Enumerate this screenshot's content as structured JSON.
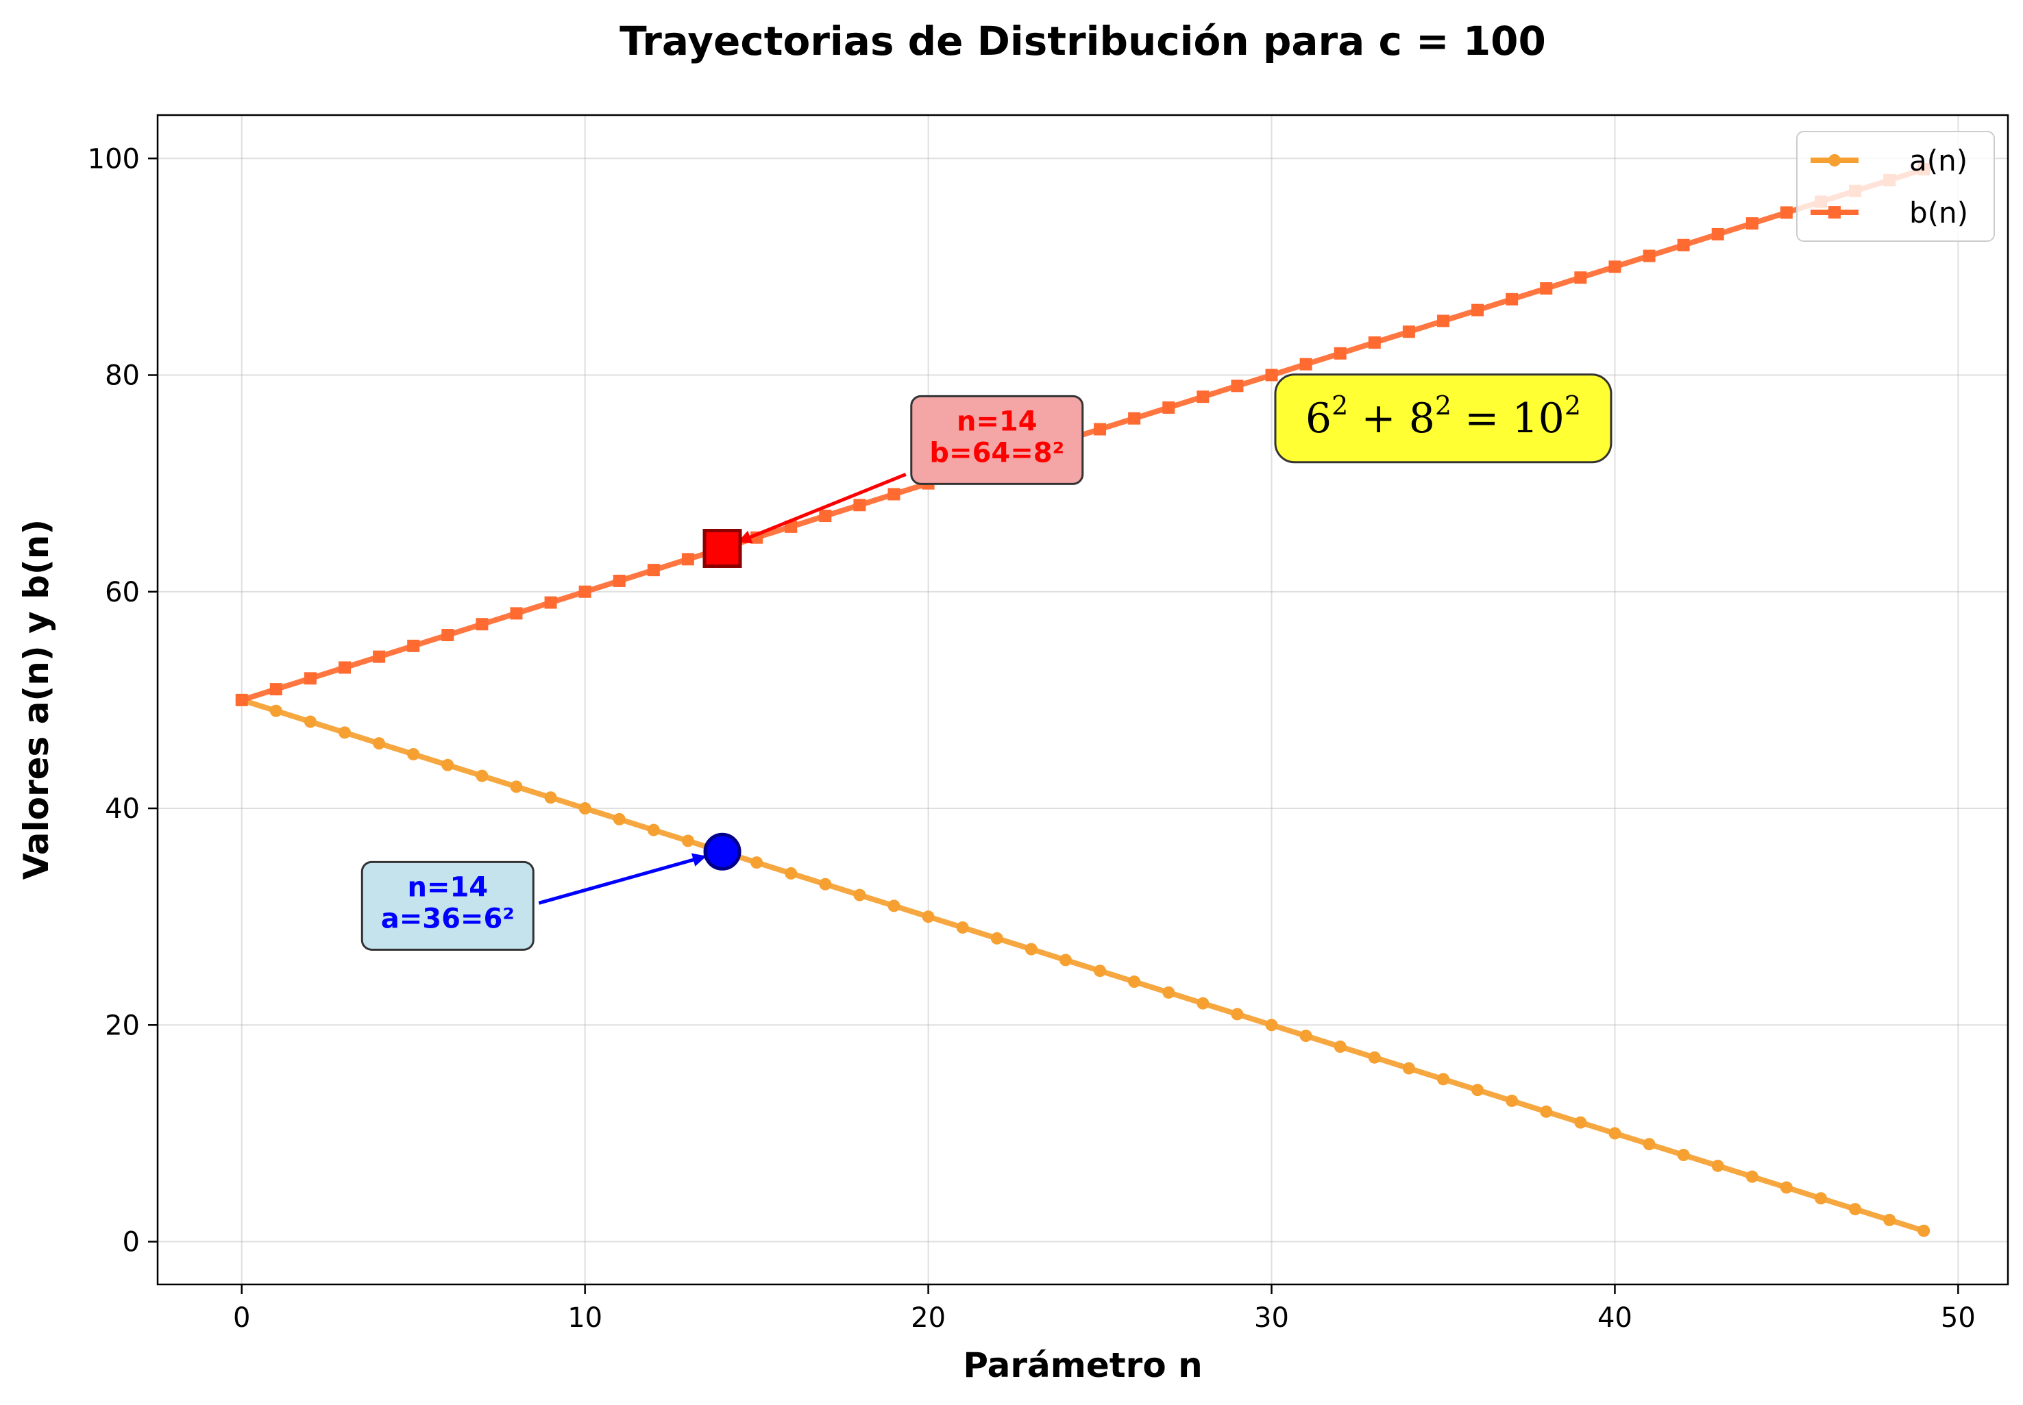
{
  "chart_data": {
    "type": "line",
    "title": "Trayectorias de Distribución para c = 100",
    "xlabel": "Parámetro n",
    "ylabel": "Valores a(n) y b(n)",
    "xlim": [
      -2.45,
      51.45
    ],
    "ylim": [
      -3.95,
      104.0
    ],
    "xticks": [
      0,
      10,
      20,
      30,
      40,
      50
    ],
    "yticks": [
      0,
      20,
      40,
      60,
      80,
      100
    ],
    "grid": true,
    "legend_position": "top-right",
    "x": [
      0,
      1,
      2,
      3,
      4,
      5,
      6,
      7,
      8,
      9,
      10,
      11,
      12,
      13,
      14,
      15,
      16,
      17,
      18,
      19,
      20,
      21,
      22,
      23,
      24,
      25,
      26,
      27,
      28,
      29,
      30,
      31,
      32,
      33,
      34,
      35,
      36,
      37,
      38,
      39,
      40,
      41,
      42,
      43,
      44,
      45,
      46,
      47,
      48,
      49
    ],
    "series": [
      {
        "name": "a(n)",
        "color": "#f5a030",
        "marker": "circle",
        "values": [
          50,
          49,
          48,
          47,
          46,
          45,
          44,
          43,
          42,
          41,
          40,
          39,
          38,
          37,
          36,
          35,
          34,
          33,
          32,
          31,
          30,
          29,
          28,
          27,
          26,
          25,
          24,
          23,
          22,
          21,
          20,
          19,
          18,
          17,
          16,
          15,
          14,
          13,
          12,
          11,
          10,
          9,
          8,
          7,
          6,
          5,
          4,
          3,
          2,
          1
        ]
      },
      {
        "name": "b(n)",
        "color": "#ff6a30",
        "marker": "square",
        "values": [
          50,
          51,
          52,
          53,
          54,
          55,
          56,
          57,
          58,
          59,
          60,
          61,
          62,
          63,
          64,
          65,
          66,
          67,
          68,
          69,
          70,
          71,
          72,
          73,
          74,
          75,
          76,
          77,
          78,
          79,
          80,
          81,
          82,
          83,
          84,
          85,
          86,
          87,
          88,
          89,
          90,
          91,
          92,
          93,
          94,
          95,
          96,
          97,
          98,
          99
        ]
      }
    ],
    "highlights": [
      {
        "series": "b(n)",
        "x": 14,
        "y": 64,
        "marker": "square",
        "fill": "#ff0000",
        "stroke": "#8b0000",
        "label_lines": [
          "n=14",
          "b=64=8²"
        ],
        "label_color": "#ff0000",
        "box_fill": "#f4a6a6",
        "text_anchor": [
          22,
          74
        ]
      },
      {
        "series": "a(n)",
        "x": 14,
        "y": 36,
        "marker": "circle",
        "fill": "#0000ff",
        "stroke": "#00008b",
        "label_lines": [
          "n=14",
          "a=36=6²"
        ],
        "label_color": "#0000ff",
        "box_fill": "#c5e3ec",
        "text_anchor": [
          6,
          31
        ]
      }
    ],
    "equation": {
      "base1": "6",
      "base2": "8",
      "base3": "10",
      "exp": "2",
      "plus": "+",
      "equals": "=",
      "box_fill": "#ffff33",
      "anchor": [
        35,
        76
      ]
    }
  }
}
